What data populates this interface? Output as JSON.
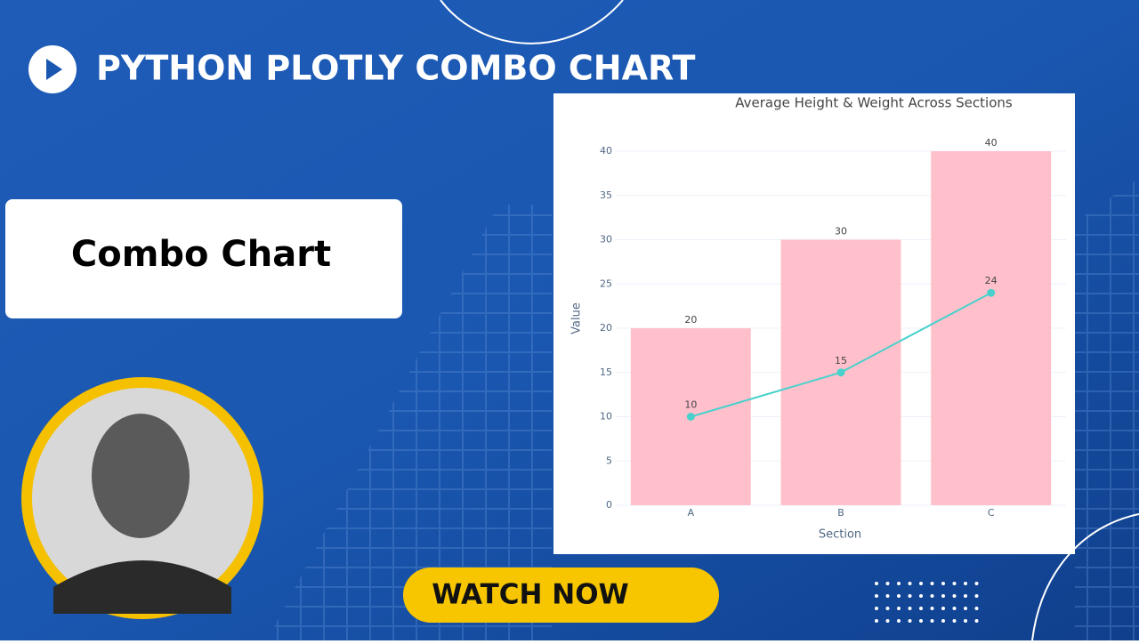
{
  "header": {
    "title": "PYTHON PLOTLY COMBO CHART"
  },
  "card": {
    "text": "Combo Chart"
  },
  "button": {
    "text": "WATCH NOW"
  },
  "chart_data": {
    "type": "combo",
    "title": "Average Height & Weight Across Sections",
    "x_label": "Section",
    "y_label": "Value",
    "categories": [
      "A",
      "B",
      "C"
    ],
    "series": [
      {
        "type": "bar",
        "color": "#ffc0cb",
        "values": [
          20,
          30,
          40
        ]
      },
      {
        "type": "line",
        "color": "#48d1cc",
        "values": [
          10,
          15,
          24
        ]
      }
    ],
    "ylim": [
      0,
      40
    ],
    "yticks": [
      0,
      5,
      10,
      15,
      20,
      25,
      30,
      35,
      40
    ],
    "grid": true
  }
}
